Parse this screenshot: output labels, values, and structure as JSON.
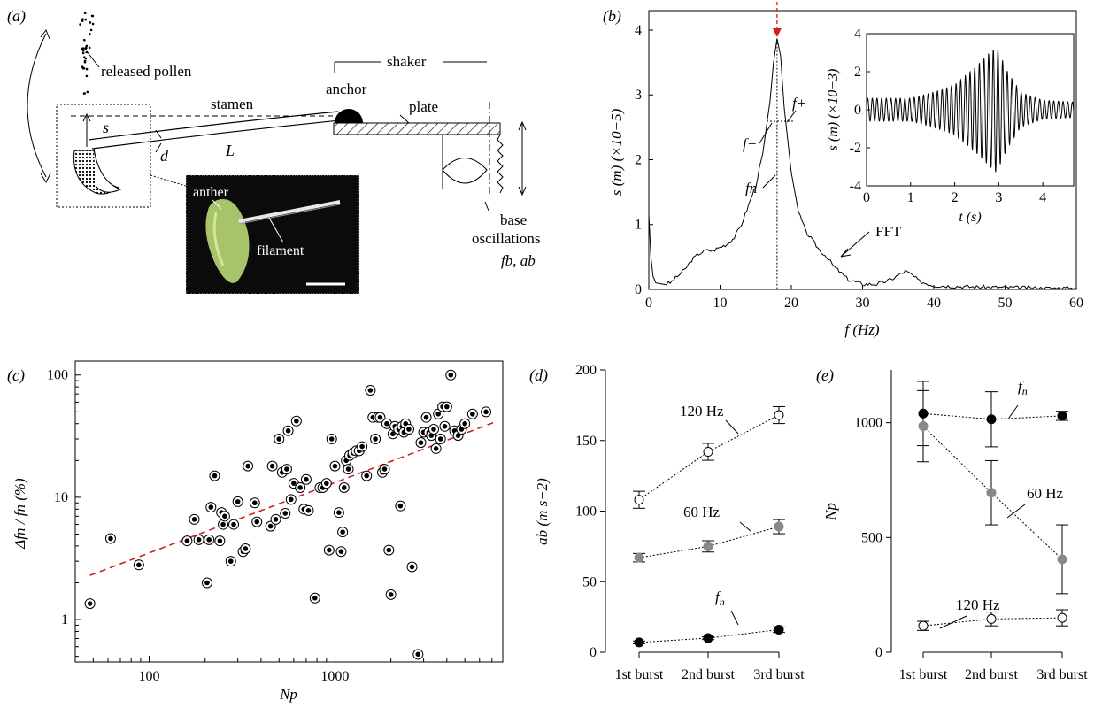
{
  "panel_labels": {
    "a": "(a)",
    "b": "(b)",
    "c": "(c)",
    "d": "(d)",
    "e": "(e)"
  },
  "panel_a": {
    "released_pollen": "released pollen",
    "stamen": "stamen",
    "anchor": "anchor",
    "shaker": "shaker",
    "plate": "plate",
    "s": "s",
    "d": "d",
    "L": "L",
    "base_oscillations_1": "base",
    "base_oscillations_2": "oscillations",
    "fb_ab": "fb, ab",
    "anther": "anther",
    "filament": "filament"
  },
  "panel_b": {
    "ylabel": "s (m) (×10−5)",
    "xlabel": "f (Hz)",
    "f_minus": "f−",
    "f_plus": "f+",
    "f_n": "fn",
    "fft": "FFT",
    "inset_ylabel": "s (m) (×10−3)",
    "inset_xlabel": "t (s)"
  },
  "chart_data": [
    {
      "type": "line",
      "id": "b",
      "xlabel": "f (Hz)",
      "ylabel": "s (m) (×10−5)",
      "xlim": [
        0,
        60
      ],
      "ylim": [
        0,
        4.3
      ],
      "xticks": [
        0,
        10,
        20,
        30,
        40,
        50,
        60
      ],
      "yticks": [
        0,
        1,
        2,
        3,
        4
      ],
      "x": [
        0,
        0.3,
        0.6,
        1,
        2,
        3,
        4,
        5,
        6,
        7,
        8,
        9,
        10,
        11,
        12,
        13,
        14,
        15,
        16,
        17,
        17.5,
        18,
        18.5,
        19,
        20,
        21,
        22,
        23,
        24,
        25,
        26,
        28,
        30,
        32,
        34,
        35,
        36,
        37,
        38,
        40,
        45,
        50,
        55,
        60
      ],
      "y": [
        1.15,
        0.5,
        0.2,
        0.1,
        0.08,
        0.1,
        0.2,
        0.3,
        0.45,
        0.55,
        0.6,
        0.6,
        0.65,
        0.7,
        0.8,
        1.0,
        1.3,
        1.6,
        2.1,
        2.9,
        3.5,
        3.87,
        3.6,
        2.8,
        1.8,
        1.2,
        0.9,
        0.75,
        0.6,
        0.5,
        0.35,
        0.15,
        0.08,
        0.08,
        0.15,
        0.22,
        0.28,
        0.22,
        0.12,
        0.06,
        0.04,
        0.03,
        0.02,
        0.02
      ],
      "peak_x": 18
    },
    {
      "type": "line",
      "id": "b-inset",
      "xlabel": "t (s)",
      "ylabel": "s (m) (×10−3)",
      "xlim": [
        0,
        4.7
      ],
      "ylim": [
        -4,
        4
      ],
      "xticks": [
        0,
        1,
        2,
        3,
        4
      ],
      "yticks": [
        -4,
        -2,
        0,
        2,
        4
      ],
      "carrier_hz": 18,
      "envelope_t": [
        0,
        1,
        1.5,
        2,
        2.5,
        2.8,
        2.95,
        3.2,
        3.5,
        4,
        4.7
      ],
      "envelope_a": [
        0.6,
        0.6,
        0.9,
        1.3,
        2.3,
        3.0,
        3.3,
        2.0,
        0.9,
        0.5,
        0.4
      ]
    },
    {
      "type": "scatter",
      "id": "c",
      "xlabel": "Np",
      "ylabel": "Δfn / fn (%)",
      "xscale": "log",
      "yscale": "log",
      "xlim": [
        40,
        8000
      ],
      "ylim": [
        0.45,
        130
      ],
      "xticks": [
        100,
        1000
      ],
      "yticks": [
        1,
        10,
        100
      ],
      "x": [
        48,
        62,
        88,
        160,
        175,
        185,
        205,
        210,
        215,
        225,
        240,
        245,
        250,
        255,
        275,
        285,
        300,
        320,
        330,
        340,
        370,
        380,
        450,
        460,
        480,
        500,
        520,
        540,
        550,
        560,
        580,
        600,
        620,
        650,
        680,
        700,
        720,
        780,
        830,
        860,
        900,
        930,
        960,
        1000,
        1050,
        1080,
        1100,
        1120,
        1150,
        1180,
        1200,
        1250,
        1300,
        1350,
        1400,
        1480,
        1550,
        1600,
        1650,
        1700,
        1750,
        1800,
        1850,
        1900,
        1950,
        2000,
        2050,
        2100,
        2200,
        2250,
        2300,
        2350,
        2400,
        2500,
        2600,
        2800,
        2900,
        3000,
        3100,
        3200,
        3300,
        3400,
        3500,
        3600,
        3700,
        3800,
        3900,
        4000,
        4200,
        4400,
        4600,
        4800,
        5000,
        5500,
        6500
      ],
      "y": [
        1.35,
        4.6,
        2.8,
        4.4,
        6.6,
        4.5,
        2.0,
        4.5,
        8.3,
        15,
        4.4,
        7.5,
        6.0,
        7.0,
        3.0,
        6.0,
        9.2,
        3.6,
        3.8,
        18,
        9.0,
        6.3,
        5.8,
        18,
        6.6,
        30,
        16,
        7.4,
        17,
        35,
        9.6,
        13,
        42,
        12,
        8.0,
        14,
        7.8,
        1.5,
        12,
        12,
        13,
        3.7,
        30,
        18,
        7.5,
        3.6,
        5.2,
        12,
        20,
        17,
        22,
        23,
        24,
        24,
        26,
        15,
        75,
        45,
        30,
        45,
        45,
        16,
        17,
        40,
        3.7,
        1.6,
        33,
        38,
        36,
        8.5,
        38,
        34,
        40,
        36,
        2.7,
        0.52,
        28,
        34,
        45,
        34,
        32,
        36,
        25,
        48,
        30,
        55,
        38,
        55,
        100,
        35,
        32,
        36,
        40,
        48,
        50
      ],
      "fit_x": [
        48,
        7500
      ],
      "fit_y": [
        2.3,
        42
      ]
    },
    {
      "type": "line",
      "id": "d",
      "xlabel": "",
      "ylabel": "ab (m s−2)",
      "ylim": [
        0,
        200
      ],
      "yticks": [
        0,
        50,
        100,
        150,
        200
      ],
      "categories": [
        "1st burst",
        "2nd burst",
        "3rd burst"
      ],
      "series": [
        {
          "name": "120 Hz",
          "values": [
            108,
            142,
            168
          ],
          "err": [
            6,
            6,
            6
          ],
          "marker": "open"
        },
        {
          "name": "60 Hz",
          "values": [
            67,
            75,
            89
          ],
          "err": [
            3,
            4,
            5
          ],
          "marker": "gray"
        },
        {
          "name": "fn",
          "values": [
            7,
            10,
            16
          ],
          "err": [
            1,
            1,
            2
          ],
          "marker": "black"
        }
      ]
    },
    {
      "type": "line",
      "id": "e",
      "xlabel": "",
      "ylabel": "Np",
      "ylim": [
        0,
        1230
      ],
      "yticks": [
        0,
        500,
        1000
      ],
      "categories": [
        "1st burst",
        "2nd burst",
        "3rd burst"
      ],
      "series": [
        {
          "name": "fn",
          "values": [
            1040,
            1015,
            1030
          ],
          "err": [
            140,
            120,
            20
          ],
          "marker": "black"
        },
        {
          "name": "60 Hz",
          "values": [
            985,
            695,
            405
          ],
          "err": [
            155,
            140,
            150
          ],
          "marker": "gray"
        },
        {
          "name": "120 Hz",
          "values": [
            115,
            145,
            150
          ],
          "err": [
            20,
            30,
            35
          ],
          "marker": "open"
        }
      ]
    }
  ]
}
